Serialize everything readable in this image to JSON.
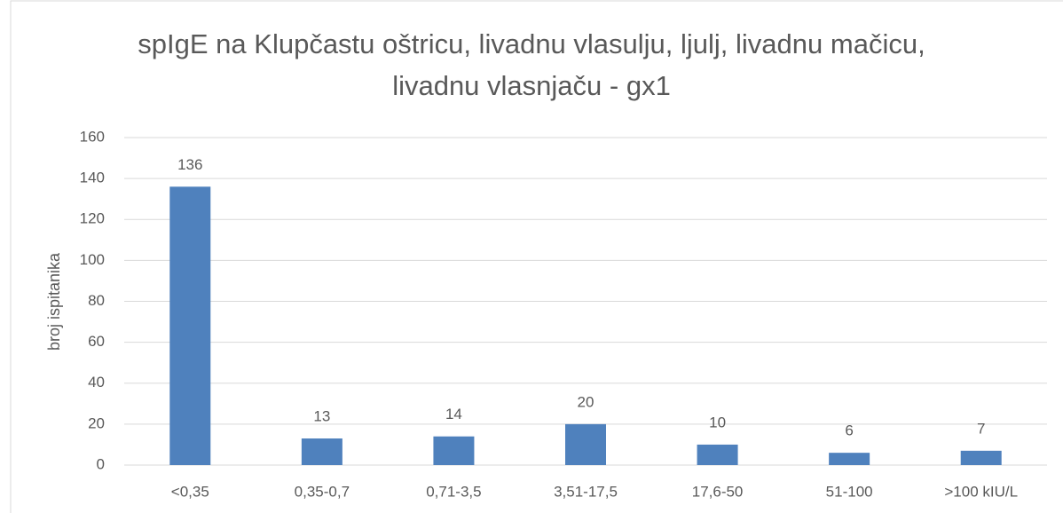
{
  "chart_data": {
    "type": "bar",
    "title": "spIgE na Klupčastu oštricu, livadnu vlasulju, ljulj, livadnu mačicu, livadnu vlasnjaču - gx1",
    "y_label": "broj ispitanika",
    "categories": [
      "<0,35",
      "0,35-0,7",
      "0,71-3,5",
      "3,51-17,5",
      "17,6-50",
      "51-100",
      ">100 kIU/L"
    ],
    "values": [
      136,
      13,
      14,
      20,
      10,
      6,
      7
    ],
    "color": "#4f81bd",
    "ylim": [
      0,
      160
    ],
    "yticks": [
      0,
      20,
      40,
      60,
      80,
      100,
      120,
      140,
      160
    ],
    "grid": true
  }
}
